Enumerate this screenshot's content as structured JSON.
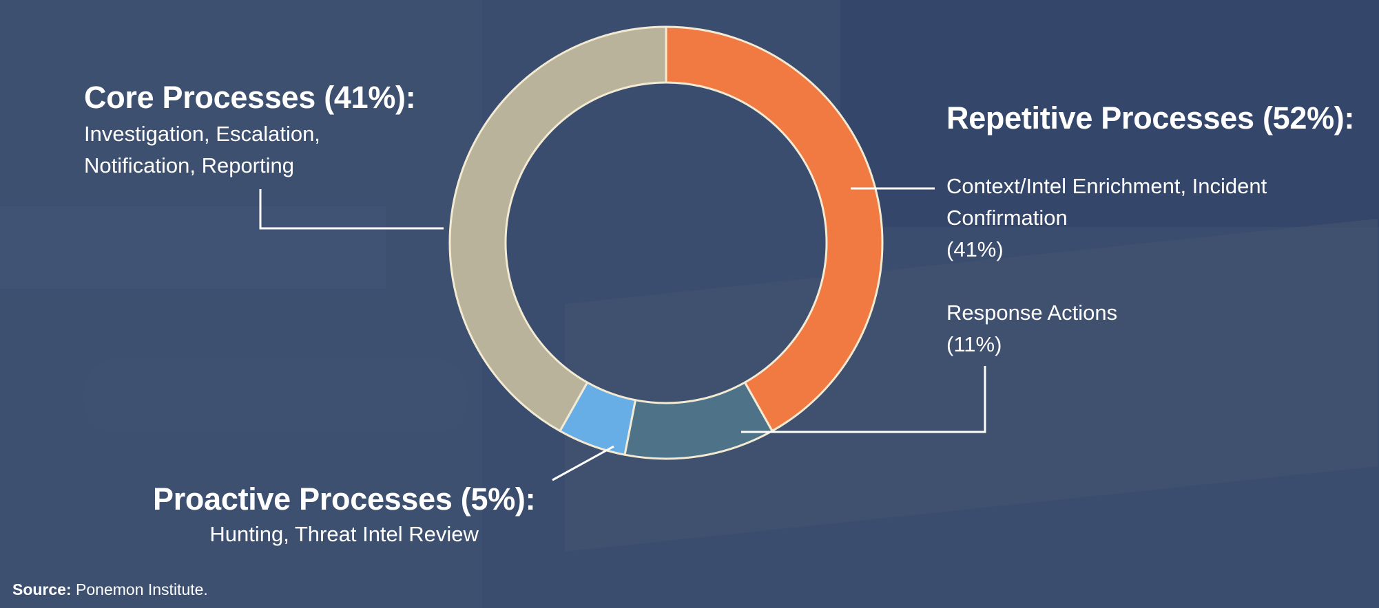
{
  "chart_data": {
    "type": "pie",
    "title": "",
    "slices": [
      {
        "label": "Context/Intel Enrichment, Incident Confirmation",
        "value": 41,
        "color": "#f07a42"
      },
      {
        "label": "Response Actions",
        "value": 11,
        "color": "#4e7389"
      },
      {
        "label": "Proactive Processes",
        "value": 5,
        "color": "#68aee6"
      },
      {
        "label": "Core Processes",
        "value": 41,
        "color": "#b8b39a"
      }
    ],
    "border_color": "#f3ead3"
  },
  "labels": {
    "core": {
      "title": "Core Processes (41%):",
      "line1": "Investigation, Escalation,",
      "line2": "Notification, Reporting"
    },
    "repetitive": {
      "title": "Repetitive Processes (52%):"
    },
    "enrichment": {
      "line1": "Context/Intel Enrichment, Incident",
      "line2": "Confirmation",
      "pct": "(41%)"
    },
    "response": {
      "line1": "Response Actions",
      "pct": "(11%)"
    },
    "proactive": {
      "title": "Proactive Processes (5%):",
      "line1": "Hunting, Threat Intel Review"
    }
  },
  "source": {
    "prefix": "Source:",
    "text": "Ponemon Institute."
  }
}
